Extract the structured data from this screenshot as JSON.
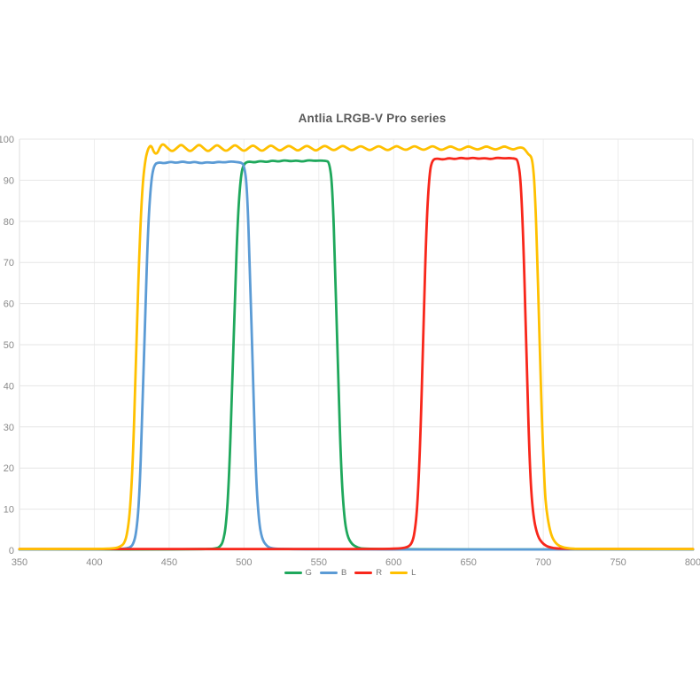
{
  "chart_data": {
    "type": "line",
    "title": "Antlia LRGB-V Pro series",
    "xlabel": "",
    "ylabel": "",
    "xlim": [
      350,
      800
    ],
    "ylim": [
      0,
      100
    ],
    "x_ticks": [
      350,
      400,
      450,
      500,
      550,
      600,
      650,
      700,
      750,
      800
    ],
    "y_ticks": [
      0,
      10,
      20,
      30,
      40,
      50,
      60,
      70,
      80,
      90,
      100
    ],
    "grid": true,
    "legend_position": "bottom",
    "styles": {
      "title_color": "#595959",
      "tick_label_color": "#8a8a8a",
      "legend_label_color": "#757575",
      "gridline_color": "#e6e6e6",
      "vertical_gridline_color": "#ededed",
      "axis_line_color": "#dcdcdc",
      "background": "#ffffff"
    },
    "series": [
      {
        "name": "G",
        "color": "#1fa85c",
        "points": [
          [
            350,
            0.2
          ],
          [
            400,
            0.2
          ],
          [
            440,
            0.2
          ],
          [
            465,
            0.25
          ],
          [
            478,
            0.3
          ],
          [
            482,
            0.5
          ],
          [
            484,
            0.9
          ],
          [
            486,
            2
          ],
          [
            488,
            6
          ],
          [
            490,
            17
          ],
          [
            492,
            38
          ],
          [
            494,
            62
          ],
          [
            496,
            82
          ],
          [
            498,
            91.5
          ],
          [
            500,
            94
          ],
          [
            503,
            94.6
          ],
          [
            507,
            94.3
          ],
          [
            511,
            94.7
          ],
          [
            515,
            94.4
          ],
          [
            519,
            94.8
          ],
          [
            523,
            94.5
          ],
          [
            527,
            94.9
          ],
          [
            531,
            94.6
          ],
          [
            535,
            94.8
          ],
          [
            539,
            94.5
          ],
          [
            543,
            94.9
          ],
          [
            547,
            94.7
          ],
          [
            551,
            94.8
          ],
          [
            555,
            94.7
          ],
          [
            557,
            94.4
          ],
          [
            559,
            89
          ],
          [
            561,
            68
          ],
          [
            563,
            42
          ],
          [
            565,
            19
          ],
          [
            567,
            8
          ],
          [
            569,
            3.5
          ],
          [
            572,
            1.5
          ],
          [
            576,
            0.6
          ],
          [
            580,
            0.3
          ],
          [
            620,
            0.2
          ],
          [
            700,
            0.2
          ],
          [
            800,
            0.2
          ]
        ]
      },
      {
        "name": "B",
        "color": "#5b9bd5",
        "points": [
          [
            350,
            0.2
          ],
          [
            390,
            0.2
          ],
          [
            415,
            0.25
          ],
          [
            421,
            0.4
          ],
          [
            424,
            0.7
          ],
          [
            426,
            1.5
          ],
          [
            428,
            4
          ],
          [
            430,
            12
          ],
          [
            432,
            32
          ],
          [
            434,
            58
          ],
          [
            436,
            79
          ],
          [
            438,
            90
          ],
          [
            440,
            93.8
          ],
          [
            443,
            94.4
          ],
          [
            447,
            94.1
          ],
          [
            451,
            94.5
          ],
          [
            455,
            94.2
          ],
          [
            459,
            94.6
          ],
          [
            463,
            94.2
          ],
          [
            467,
            94.5
          ],
          [
            471,
            94.1
          ],
          [
            475,
            94.4
          ],
          [
            479,
            94.2
          ],
          [
            483,
            94.5
          ],
          [
            487,
            94.3
          ],
          [
            491,
            94.6
          ],
          [
            495,
            94.4
          ],
          [
            498,
            94.3
          ],
          [
            500,
            93.8
          ],
          [
            502,
            89
          ],
          [
            504,
            68
          ],
          [
            506,
            42
          ],
          [
            508,
            18
          ],
          [
            510,
            7
          ],
          [
            512,
            2.8
          ],
          [
            515,
            1.1
          ],
          [
            518,
            0.5
          ],
          [
            523,
            0.3
          ],
          [
            560,
            0.2
          ],
          [
            640,
            0.2
          ],
          [
            720,
            0.2
          ],
          [
            800,
            0.2
          ]
        ]
      },
      {
        "name": "R",
        "color": "#f8271b",
        "points": [
          [
            350,
            0.3
          ],
          [
            430,
            0.3
          ],
          [
            520,
            0.3
          ],
          [
            590,
            0.3
          ],
          [
            604,
            0.4
          ],
          [
            609,
            0.7
          ],
          [
            612,
            1.5
          ],
          [
            614,
            4
          ],
          [
            616,
            11
          ],
          [
            618,
            28
          ],
          [
            620,
            55
          ],
          [
            622,
            80
          ],
          [
            624,
            92
          ],
          [
            626,
            95
          ],
          [
            629,
            95.3
          ],
          [
            633,
            95
          ],
          [
            637,
            95.4
          ],
          [
            641,
            95.1
          ],
          [
            645,
            95.5
          ],
          [
            649,
            95.2
          ],
          [
            653,
            95.5
          ],
          [
            657,
            95.2
          ],
          [
            661,
            95.4
          ],
          [
            665,
            95.1
          ],
          [
            669,
            95.5
          ],
          [
            673,
            95.3
          ],
          [
            677,
            95.4
          ],
          [
            681,
            95.3
          ],
          [
            683,
            94.9
          ],
          [
            685,
            90
          ],
          [
            687,
            72
          ],
          [
            689,
            45
          ],
          [
            691,
            20
          ],
          [
            693,
            9
          ],
          [
            696,
            3.5
          ],
          [
            700,
            1.4
          ],
          [
            705,
            0.6
          ],
          [
            712,
            0.35
          ],
          [
            760,
            0.3
          ],
          [
            800,
            0.3
          ]
        ]
      },
      {
        "name": "L",
        "color": "#ffc000",
        "points": [
          [
            350,
            0.3
          ],
          [
            385,
            0.3
          ],
          [
            408,
            0.35
          ],
          [
            414,
            0.5
          ],
          [
            417,
            0.8
          ],
          [
            420,
            1.6
          ],
          [
            422,
            4
          ],
          [
            424,
            10
          ],
          [
            426,
            24
          ],
          [
            428,
            48
          ],
          [
            430,
            72
          ],
          [
            432,
            88
          ],
          [
            434,
            95
          ],
          [
            436,
            97.8
          ],
          [
            438,
            98.6
          ],
          [
            440,
            96.6
          ],
          [
            442,
            96.4
          ],
          [
            444,
            98.2
          ],
          [
            446,
            98.9
          ],
          [
            449,
            97.8
          ],
          [
            452,
            96.9
          ],
          [
            455,
            97.8
          ],
          [
            458,
            98.8
          ],
          [
            461,
            97.8
          ],
          [
            464,
            96.9
          ],
          [
            467,
            97.8
          ],
          [
            470,
            98.8
          ],
          [
            473,
            97.8
          ],
          [
            476,
            96.9
          ],
          [
            479,
            97.8
          ],
          [
            482,
            98.7
          ],
          [
            485,
            97.8
          ],
          [
            488,
            97
          ],
          [
            491,
            97.8
          ],
          [
            494,
            98.7
          ],
          [
            497,
            97.8
          ],
          [
            500,
            97
          ],
          [
            503,
            97.8
          ],
          [
            506,
            98.6
          ],
          [
            509,
            97.8
          ],
          [
            512,
            97
          ],
          [
            515,
            97.8
          ],
          [
            518,
            98.6
          ],
          [
            521,
            97.8
          ],
          [
            524,
            97.1
          ],
          [
            527,
            97.8
          ],
          [
            530,
            98.5
          ],
          [
            533,
            97.8
          ],
          [
            536,
            97.1
          ],
          [
            539,
            97.8
          ],
          [
            542,
            98.5
          ],
          [
            545,
            97.8
          ],
          [
            548,
            97.1
          ],
          [
            551,
            97.8
          ],
          [
            554,
            98.5
          ],
          [
            557,
            97.8
          ],
          [
            560,
            97.2
          ],
          [
            563,
            97.8
          ],
          [
            566,
            98.5
          ],
          [
            569,
            97.8
          ],
          [
            572,
            97.2
          ],
          [
            575,
            97.8
          ],
          [
            578,
            98.4
          ],
          [
            581,
            97.8
          ],
          [
            584,
            97.2
          ],
          [
            587,
            97.8
          ],
          [
            590,
            98.4
          ],
          [
            593,
            97.8
          ],
          [
            596,
            97.2
          ],
          [
            599,
            97.8
          ],
          [
            602,
            98.4
          ],
          [
            605,
            97.8
          ],
          [
            608,
            97.3
          ],
          [
            611,
            97.8
          ],
          [
            614,
            98.4
          ],
          [
            617,
            97.8
          ],
          [
            620,
            97.3
          ],
          [
            623,
            97.8
          ],
          [
            626,
            98.4
          ],
          [
            629,
            97.8
          ],
          [
            632,
            97.3
          ],
          [
            635,
            97.8
          ],
          [
            638,
            98.3
          ],
          [
            641,
            97.8
          ],
          [
            644,
            97.3
          ],
          [
            647,
            97.8
          ],
          [
            650,
            98.3
          ],
          [
            653,
            97.8
          ],
          [
            656,
            97.4
          ],
          [
            659,
            97.8
          ],
          [
            662,
            98.3
          ],
          [
            665,
            97.8
          ],
          [
            668,
            97.4
          ],
          [
            671,
            97.8
          ],
          [
            674,
            98.3
          ],
          [
            677,
            97.8
          ],
          [
            680,
            97.4
          ],
          [
            683,
            97.9
          ],
          [
            686,
            98
          ],
          [
            688,
            97.4
          ],
          [
            690,
            96.3
          ],
          [
            692,
            95.8
          ],
          [
            693,
            94
          ],
          [
            694,
            90
          ],
          [
            695,
            82
          ],
          [
            696,
            71
          ],
          [
            697,
            58
          ],
          [
            698,
            45
          ],
          [
            699,
            33
          ],
          [
            700,
            23
          ],
          [
            701,
            15
          ],
          [
            702,
            10
          ],
          [
            704,
            5.5
          ],
          [
            706,
            3
          ],
          [
            709,
            1.4
          ],
          [
            713,
            0.7
          ],
          [
            718,
            0.4
          ],
          [
            724,
            0.35
          ],
          [
            760,
            0.3
          ],
          [
            800,
            0.3
          ]
        ]
      }
    ]
  }
}
